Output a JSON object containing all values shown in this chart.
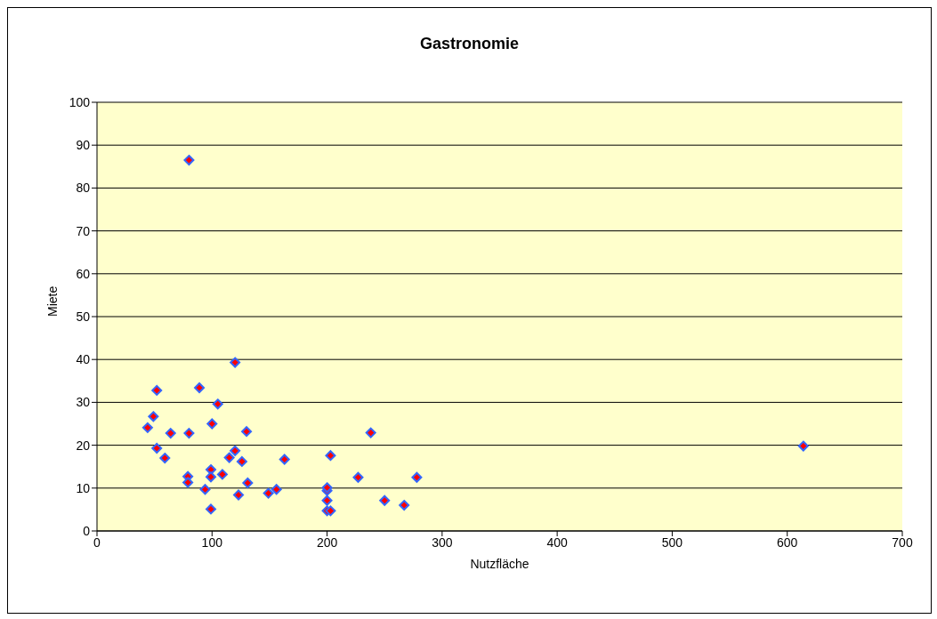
{
  "chart_data": {
    "type": "scatter",
    "title": "Gastronomie",
    "xlabel": "Nutzfläche",
    "ylabel": "Miete",
    "x": [
      80,
      44,
      49,
      52,
      52,
      59,
      64,
      80,
      79,
      79,
      89,
      94,
      99,
      99,
      99,
      100,
      105,
      109,
      115,
      120,
      120,
      123,
      126,
      130,
      131,
      149,
      156,
      163,
      200,
      200,
      200,
      200,
      203,
      203,
      227,
      238,
      250,
      267,
      278,
      614
    ],
    "values": [
      86.5,
      24.1,
      26.7,
      32.8,
      19.3,
      17.0,
      22.8,
      22.8,
      12.7,
      11.3,
      33.4,
      9.7,
      5.1,
      14.3,
      12.6,
      25.0,
      29.6,
      13.2,
      17.1,
      18.7,
      39.3,
      8.4,
      16.2,
      23.2,
      11.2,
      8.8,
      9.7,
      16.7,
      9.4,
      10.1,
      7.1,
      4.7,
      17.6,
      4.7,
      12.5,
      22.9,
      7.1,
      6.0,
      12.5,
      19.8
    ],
    "color": "#ff0000",
    "marker": "diamond",
    "xlim": [
      0,
      700
    ],
    "xticks": [
      0,
      100,
      200,
      300,
      400,
      500,
      600,
      700
    ],
    "ylim": [
      0,
      100
    ],
    "yticks": [
      0,
      10,
      20,
      30,
      40,
      50,
      60,
      70,
      80,
      90,
      100
    ],
    "grid": "y",
    "legend": false
  }
}
